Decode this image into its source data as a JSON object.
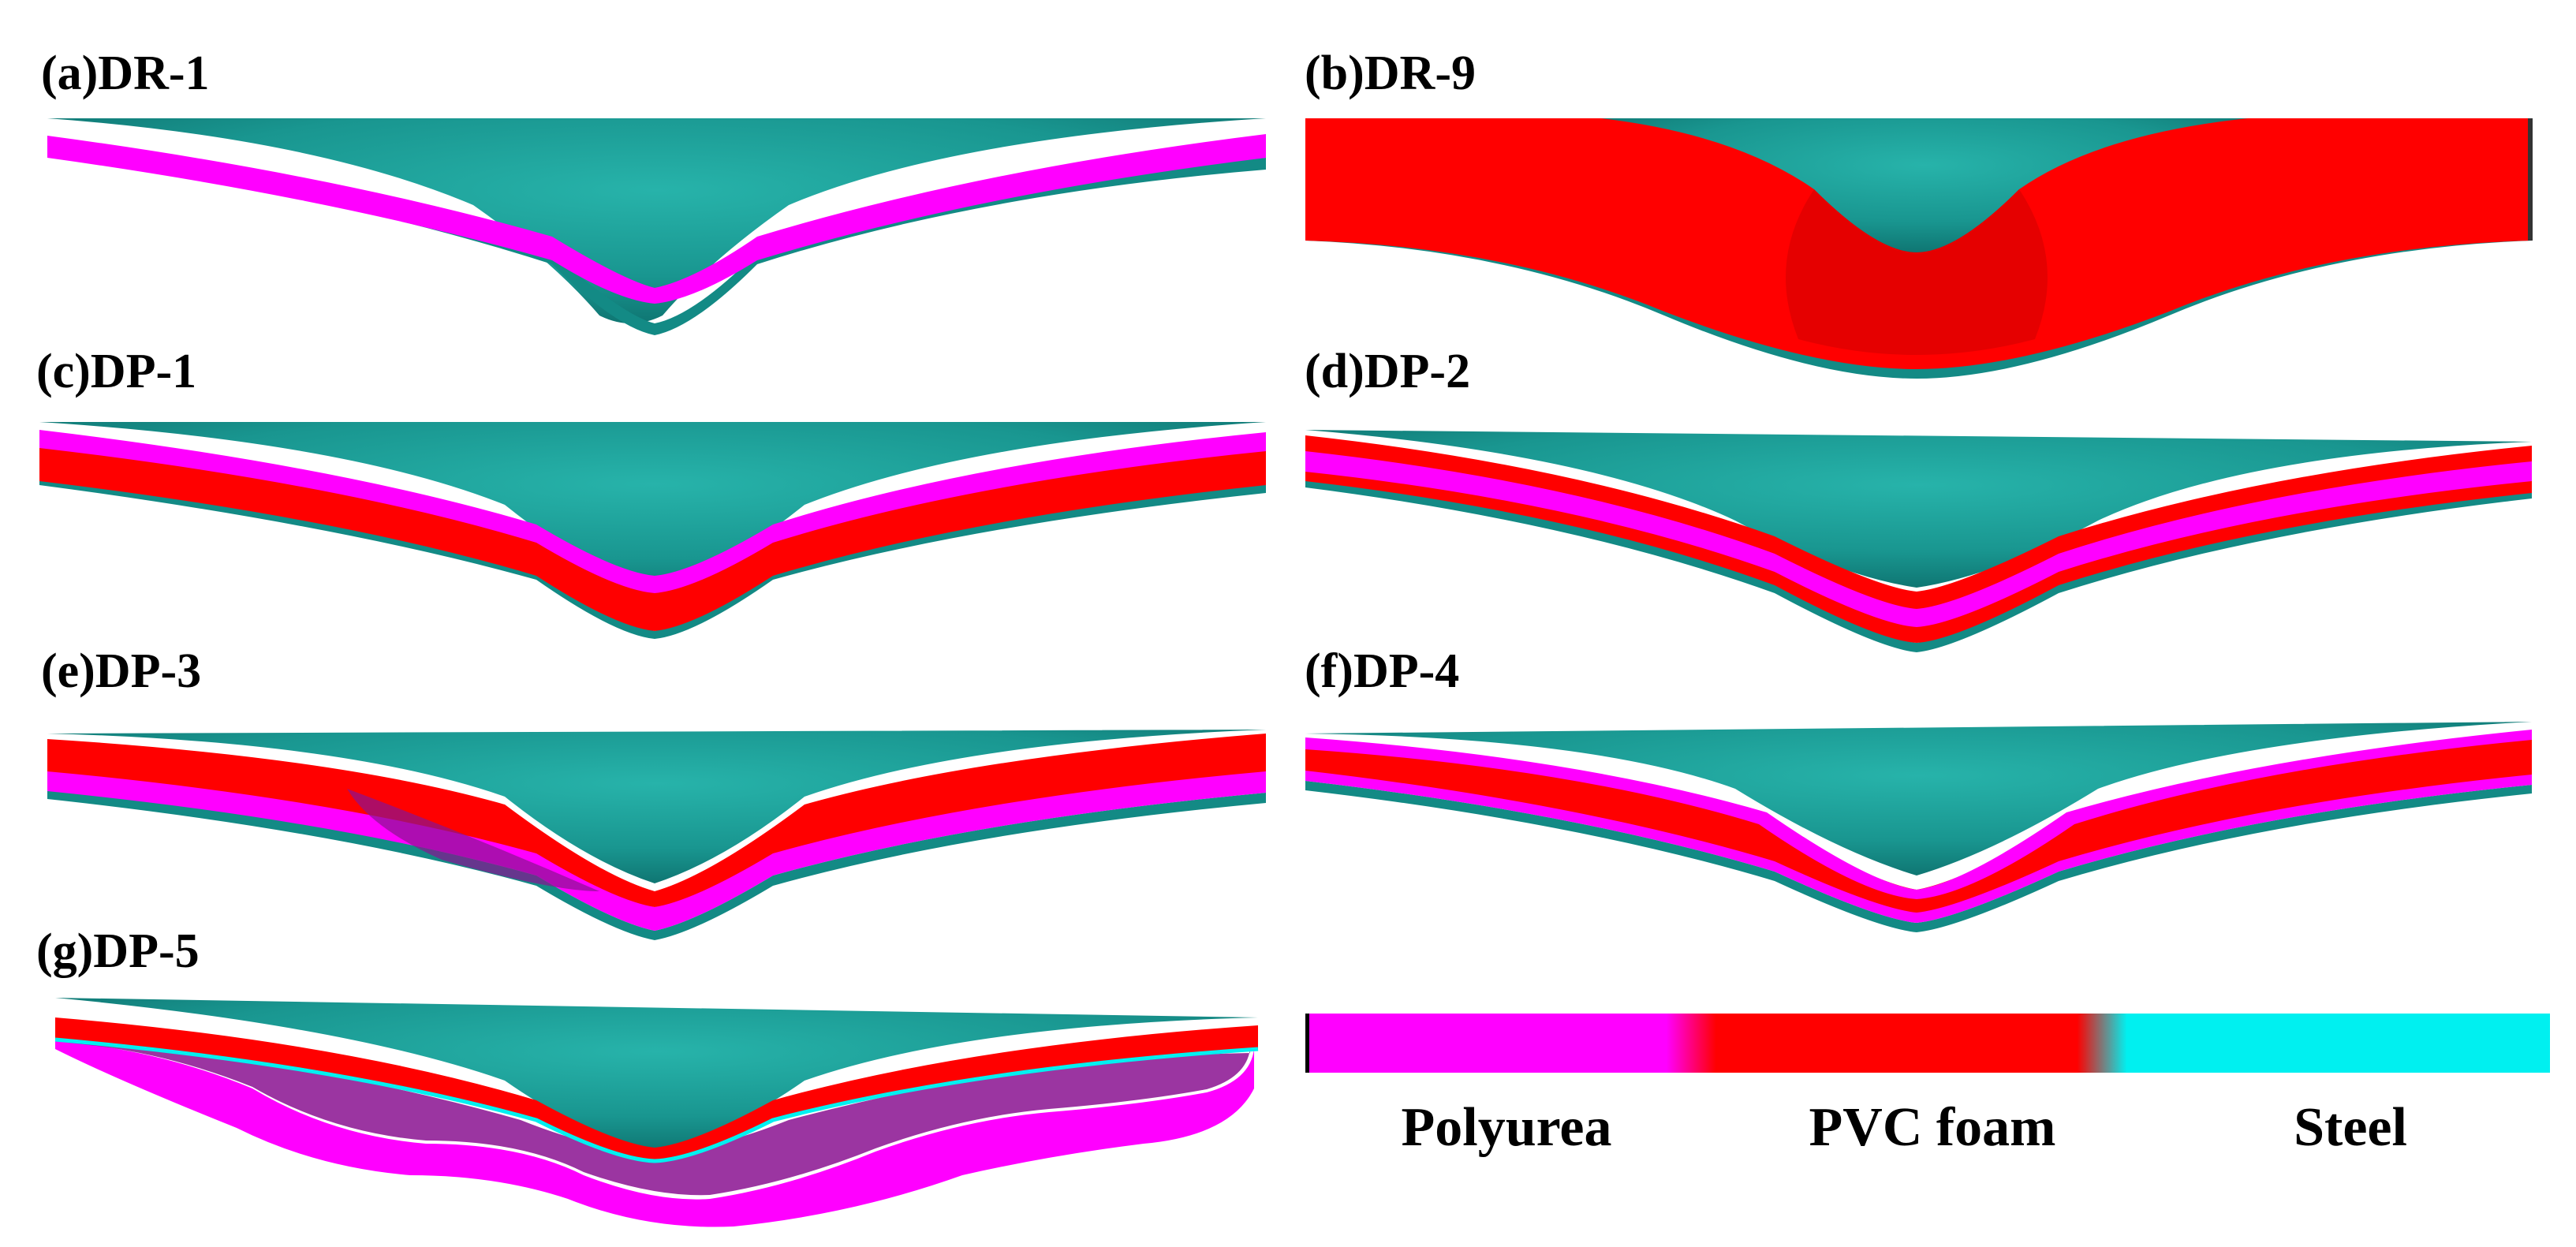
{
  "panels": [
    {
      "id": "a",
      "label": "(a)DR-1"
    },
    {
      "id": "b",
      "label": "(b)DR-9"
    },
    {
      "id": "c",
      "label": "(c)DP-1"
    },
    {
      "id": "d",
      "label": "(d)DP-2"
    },
    {
      "id": "e",
      "label": "(e)DP-3"
    },
    {
      "id": "f",
      "label": "(f)DP-4"
    },
    {
      "id": "g",
      "label": "(g)DP-5"
    }
  ],
  "legend": {
    "items": [
      {
        "label": "Polyurea",
        "color": "#ff00ff"
      },
      {
        "label": "PVC foam",
        "color": "#ff0000"
      },
      {
        "label": "Steel",
        "color": "#00f0f0"
      }
    ]
  },
  "colors": {
    "polyurea": "#ff00ff",
    "pvc_foam": "#ff0000",
    "steel": "#00f0f0",
    "steel_shaded": "#1d9c95",
    "dark_shadow": "#8a1290"
  }
}
